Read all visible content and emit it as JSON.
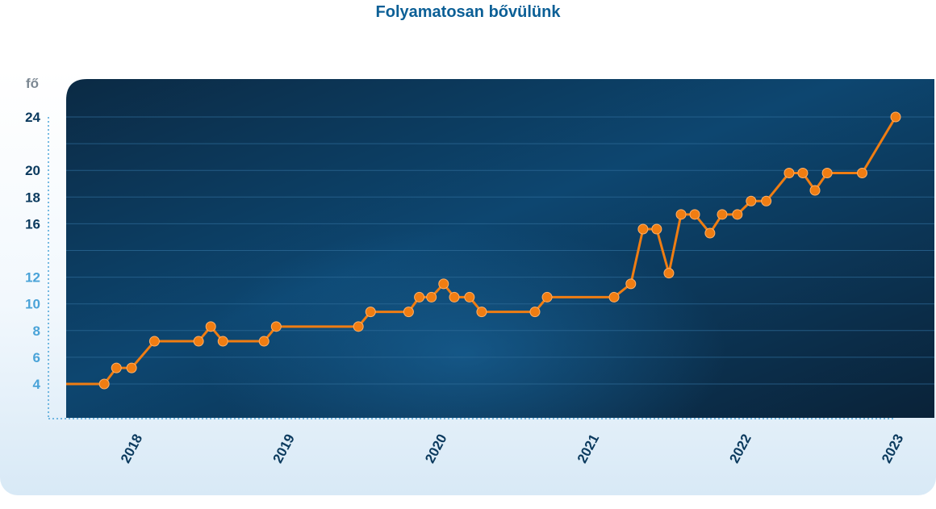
{
  "chart_data": {
    "type": "line",
    "title": "Folyamatosan bővülünk",
    "ylabel": "fő",
    "xlabel": "",
    "ylim": [
      2,
      25
    ],
    "xlim": [
      2017.55,
      2023.2
    ],
    "yticks": [
      4,
      6,
      8,
      10,
      12,
      16,
      18,
      20,
      24
    ],
    "xticks": [
      "2018",
      "2019",
      "2020",
      "2021",
      "2022",
      "2023"
    ],
    "grid": true,
    "legend": "none",
    "colors": {
      "line": "#f07d12",
      "plot_bg_top": "#0b2a44",
      "plot_bg_mid": "#0d4670",
      "gridline": "#2f6d9a",
      "ytick_dark": "#0b3a5e",
      "ytick_light": "#4aa3d8",
      "title": "#0b5f96"
    },
    "series": [
      {
        "x": [
          2017.55,
          2017.8,
          2017.88,
          2017.98,
          2018.13,
          2018.42,
          2018.5,
          2018.58,
          2018.85,
          2018.93,
          2019.47,
          2019.55,
          2019.8,
          2019.87,
          2019.95,
          2020.03,
          2020.1,
          2020.2,
          2020.28,
          2020.63,
          2020.71,
          2021.15,
          2021.26,
          2021.34,
          2021.43,
          2021.51,
          2021.59,
          2021.68,
          2021.78,
          2021.86,
          2021.96,
          2022.05,
          2022.15,
          2022.3,
          2022.39,
          2022.47,
          2022.55,
          2022.78,
          2023.0
        ],
        "values": [
          4,
          4,
          5.2,
          5.2,
          7.2,
          7.2,
          8.3,
          7.2,
          7.2,
          8.3,
          8.3,
          9.4,
          9.4,
          10.5,
          10.5,
          11.5,
          10.5,
          10.5,
          9.4,
          9.4,
          10.5,
          10.5,
          11.5,
          15.6,
          15.6,
          12.3,
          16.7,
          16.7,
          15.3,
          16.7,
          16.7,
          17.7,
          17.7,
          19.8,
          19.8,
          18.5,
          19.8,
          19.8,
          24
        ],
        "markers": [
          false,
          true,
          true,
          true,
          true,
          true,
          true,
          true,
          true,
          true,
          true,
          true,
          true,
          true,
          true,
          true,
          true,
          true,
          true,
          true,
          true,
          true,
          true,
          true,
          true,
          true,
          true,
          true,
          true,
          true,
          true,
          true,
          true,
          true,
          true,
          true,
          true,
          true,
          true
        ]
      }
    ]
  }
}
